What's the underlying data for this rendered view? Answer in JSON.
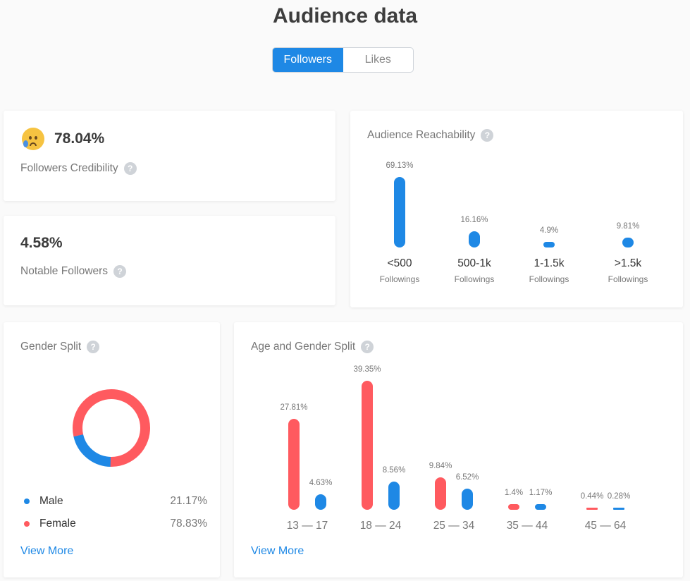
{
  "header": {
    "title": "Audience data"
  },
  "tabs": [
    {
      "label": "Followers",
      "active": true
    },
    {
      "label": "Likes",
      "active": false
    }
  ],
  "credibility": {
    "value": "78.04%",
    "label": "Followers Credibility",
    "icon": "sad-tear-emoji"
  },
  "notable": {
    "value": "4.58%",
    "label": "Notable Followers"
  },
  "reachability": {
    "title": "Audience Reachability",
    "items": [
      {
        "pct": "69.13%",
        "value": 69.13,
        "label": "<500",
        "sub": "Followings"
      },
      {
        "pct": "16.16%",
        "value": 16.16,
        "label": "500-1k",
        "sub": "Followings"
      },
      {
        "pct": "4.9%",
        "value": 4.9,
        "label": "1-1.5k",
        "sub": "Followings"
      },
      {
        "pct": "9.81%",
        "value": 9.81,
        "label": ">1.5k",
        "sub": "Followings"
      }
    ]
  },
  "gender": {
    "title": "Gender Split",
    "items": [
      {
        "label": "Male",
        "pct": "21.17%",
        "value": 21.17,
        "color": "#1e88e5"
      },
      {
        "label": "Female",
        "pct": "78.83%",
        "value": 78.83,
        "color": "#ff5a5f"
      }
    ],
    "view_more": "View More"
  },
  "age_gender": {
    "title": "Age and Gender Split",
    "groups": [
      {
        "label": "13 — 17",
        "female": 27.81,
        "female_pct": "27.81%",
        "male": 4.63,
        "male_pct": "4.63%"
      },
      {
        "label": "18 — 24",
        "female": 39.35,
        "female_pct": "39.35%",
        "male": 8.56,
        "male_pct": "8.56%"
      },
      {
        "label": "25 — 34",
        "female": 9.84,
        "female_pct": "9.84%",
        "male": 6.52,
        "male_pct": "6.52%"
      },
      {
        "label": "35 — 44",
        "female": 1.4,
        "female_pct": "1.4%",
        "male": 1.17,
        "male_pct": "1.17%"
      },
      {
        "label": "45 — 64",
        "female": 0.44,
        "female_pct": "0.44%",
        "male": 0.28,
        "male_pct": "0.28%"
      }
    ],
    "colors": {
      "female": "#ff5a5f",
      "male": "#1e88e5"
    },
    "view_more": "View More"
  },
  "help_icon": "?"
}
